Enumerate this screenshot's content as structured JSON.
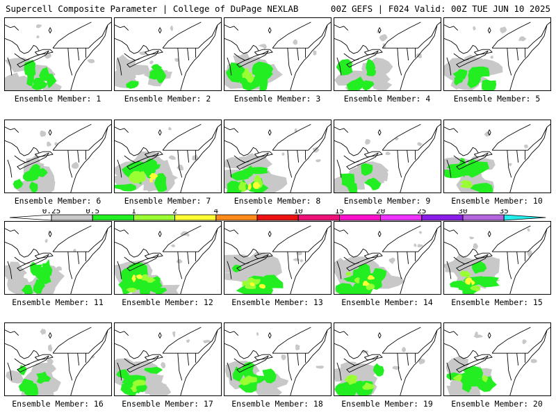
{
  "header": {
    "left_title": "Supercell Composite Parameter | College of DuPage NEXLAB",
    "right_title": "00Z GEFS | F024 Valid: 00Z TUE JUN 10 2025"
  },
  "label_prefix": "Ensemble Member: ",
  "members": [
    {
      "id": "1",
      "intensity": 0.7
    },
    {
      "id": "2",
      "intensity": 0.8
    },
    {
      "id": "3",
      "intensity": 1.0
    },
    {
      "id": "4",
      "intensity": 0.9
    },
    {
      "id": "5",
      "intensity": 0.9
    },
    {
      "id": "6",
      "intensity": 0.8
    },
    {
      "id": "7",
      "intensity": 1.4
    },
    {
      "id": "8",
      "intensity": 1.3
    },
    {
      "id": "9",
      "intensity": 0.7
    },
    {
      "id": "10",
      "intensity": 1.1
    },
    {
      "id": "11",
      "intensity": 0.6
    },
    {
      "id": "12",
      "intensity": 1.5
    },
    {
      "id": "13",
      "intensity": 1.5
    },
    {
      "id": "14",
      "intensity": 1.5
    },
    {
      "id": "15",
      "intensity": 1.4
    },
    {
      "id": "16",
      "intensity": 0.6
    },
    {
      "id": "17",
      "intensity": 1.2
    },
    {
      "id": "18",
      "intensity": 1.1
    },
    {
      "id": "19",
      "intensity": 1.1
    },
    {
      "id": "20",
      "intensity": 1.0
    }
  ],
  "colorbar": {
    "ticks": [
      "0.25",
      "0.5",
      "1",
      "2",
      "4",
      "7",
      "10",
      "15",
      "20",
      "25",
      "30",
      "35"
    ],
    "colors": [
      "#ffffff",
      "#c8c8c8",
      "#22ee22",
      "#99ff33",
      "#ffff33",
      "#ff8c1a",
      "#ee1111",
      "#ee1177",
      "#ff11cc",
      "#ee33ff",
      "#8a1ee8",
      "#b366dd",
      "#22eeee"
    ]
  }
}
